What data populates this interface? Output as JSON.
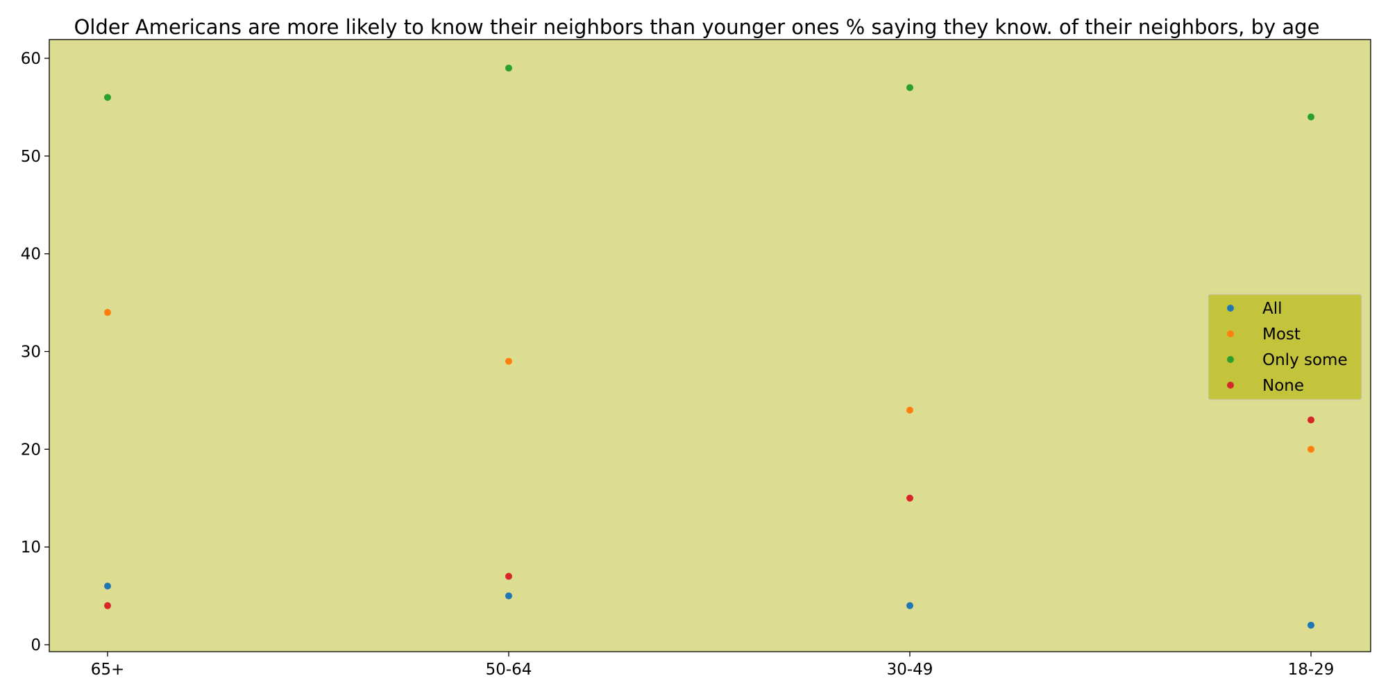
{
  "chart_data": {
    "type": "scatter",
    "title": "Older Americans are more likely to know their neighbors than younger ones % saying they know. of their neighbors, by age",
    "xlabel": "",
    "ylabel": "",
    "categories": [
      "65+",
      "50-64",
      "30-49",
      "18-29"
    ],
    "ylim": [
      -0.8,
      62
    ],
    "yticks": [
      0,
      10,
      20,
      30,
      40,
      50,
      60
    ],
    "grid": false,
    "legend_position": "center-right",
    "background_color": "#dddd91",
    "legend_background_color": "#c4c43c",
    "series": [
      {
        "name": "All",
        "color": "#1f77b4",
        "values": [
          6,
          5,
          4,
          2
        ]
      },
      {
        "name": "Most",
        "color": "#ff7f0e",
        "values": [
          34,
          29,
          24,
          20
        ]
      },
      {
        "name": "Only some",
        "color": "#2ca02c",
        "values": [
          56,
          59,
          57,
          54
        ]
      },
      {
        "name": "None",
        "color": "#d62728",
        "values": [
          4,
          7,
          15,
          23
        ]
      }
    ]
  }
}
